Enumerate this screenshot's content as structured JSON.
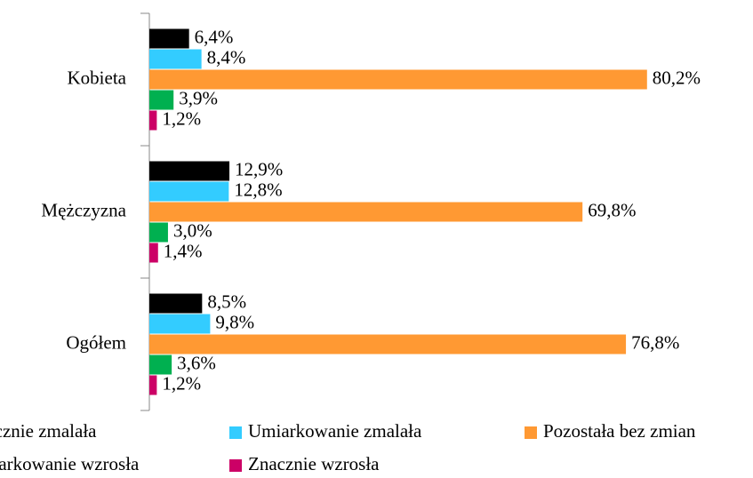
{
  "chart_data": {
    "type": "bar",
    "orientation": "horizontal",
    "categories": [
      "Kobieta",
      "Mężczyzna",
      "Ogółem"
    ],
    "series": [
      {
        "name": "Znacznie zmalała",
        "color": "#000000",
        "values": [
          6.4,
          12.9,
          8.5
        ],
        "value_labels": [
          "6,4%",
          "12,9%",
          "8,5%"
        ]
      },
      {
        "name": "Umiarkowanie zmalała",
        "color": "#33ccff",
        "values": [
          8.4,
          12.8,
          9.8
        ],
        "value_labels": [
          "8,4%",
          "12,8%",
          "9,8%"
        ]
      },
      {
        "name": "Pozostała bez zmian",
        "color": "#ff9933",
        "values": [
          80.2,
          69.8,
          76.8
        ],
        "value_labels": [
          "80,2%",
          "69,8%",
          "76,8%"
        ]
      },
      {
        "name": "Umiarkowanie wzrosła",
        "color": "#00b050",
        "values": [
          3.9,
          3.0,
          3.6
        ],
        "value_labels": [
          "3,9%",
          "3,0%",
          "3,6%"
        ]
      },
      {
        "name": "Znacznie wzrosła",
        "color": "#cc0066",
        "values": [
          1.2,
          1.4,
          1.2
        ],
        "value_labels": [
          "1,2%",
          "1,4%",
          "1,2%"
        ]
      }
    ]
  }
}
